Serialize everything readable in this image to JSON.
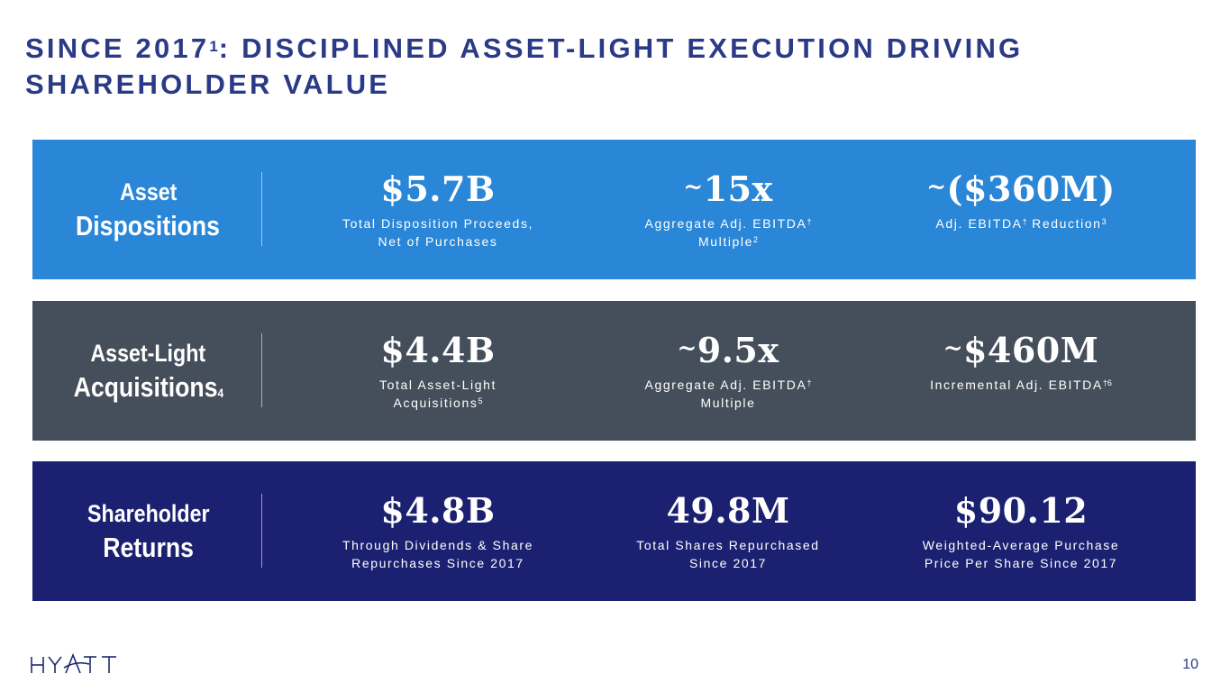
{
  "slide": {
    "title_part1": "SINCE 2017",
    "title_sup": "1",
    "title_part2": ": DISCIPLINED ASSET-LIGHT EXECUTION DRIVING SHAREHOLDER VALUE",
    "page_number": "10",
    "logo_text": "HYATT"
  },
  "colors": {
    "title": "#2b3a86",
    "band_1": "#2a86d7",
    "band_2": "#444f5b",
    "band_3": "#1b2170"
  },
  "bands": [
    {
      "label_line1": "Asset",
      "label_line2": "Dispositions",
      "label_sup": "",
      "stats": [
        {
          "prefix": "",
          "value": "$5.7B",
          "desc_line1": "Total Disposition Proceeds,",
          "desc_line1_sup": "",
          "desc_line2": "Net of Purchases",
          "desc_line2_sup": ""
        },
        {
          "prefix": "~",
          "value": "15x",
          "desc_line1": "Aggregate Adj. EBITDA",
          "desc_line1_sup": "†",
          "desc_line2": "Multiple",
          "desc_line2_sup": "2"
        },
        {
          "prefix": "~",
          "value": "($360M)",
          "desc_line1": "Adj. EBITDA",
          "desc_line1_sup": "†",
          "desc_line1_tail": " Reduction",
          "desc_line1_tail_sup": "3",
          "desc_line2": "",
          "desc_line2_sup": ""
        }
      ]
    },
    {
      "label_line1": "Asset-Light",
      "label_line2": "Acquisitions",
      "label_sup": "4",
      "stats": [
        {
          "prefix": "",
          "value": "$4.4B",
          "desc_line1": "Total Asset-Light",
          "desc_line1_sup": "",
          "desc_line2": "Acquisitions",
          "desc_line2_sup": "5"
        },
        {
          "prefix": "~",
          "value": "9.5x",
          "desc_line1": "Aggregate Adj. EBITDA",
          "desc_line1_sup": "†",
          "desc_line2": "Multiple",
          "desc_line2_sup": ""
        },
        {
          "prefix": "~",
          "value": "$460M",
          "desc_line1": "Incremental Adj. EBITDA",
          "desc_line1_sup": "†6",
          "desc_line2": "",
          "desc_line2_sup": ""
        }
      ]
    },
    {
      "label_line1": "Shareholder",
      "label_line2": "Returns",
      "label_sup": "",
      "stats": [
        {
          "prefix": "",
          "value": "$4.8B",
          "desc_line1": "Through Dividends & Share",
          "desc_line1_sup": "",
          "desc_line2": "Repurchases Since 2017",
          "desc_line2_sup": ""
        },
        {
          "prefix": "",
          "value": "49.8M",
          "desc_line1": "Total Shares Repurchased",
          "desc_line1_sup": "",
          "desc_line2": "Since 2017",
          "desc_line2_sup": ""
        },
        {
          "prefix": "",
          "value": "$90.12",
          "desc_line1": "Weighted-Average Purchase",
          "desc_line1_sup": "",
          "desc_line2": "Price Per Share Since 2017",
          "desc_line2_sup": ""
        }
      ]
    }
  ]
}
